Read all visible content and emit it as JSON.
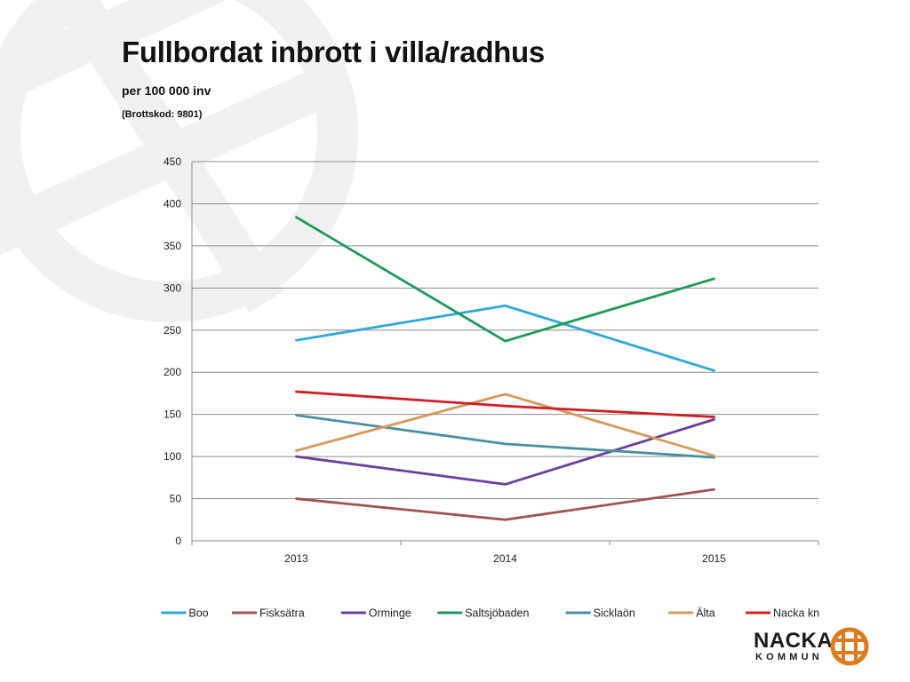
{
  "header": {
    "title": "Fullbordat inbrott i villa/radhus",
    "subtitle": "per 100 000 inv",
    "note": "(Brottskod: 9801)"
  },
  "logo": {
    "word1": "NACKA",
    "word2": "KOMMUN",
    "accent_color": "#e07a1f"
  },
  "chart_data": {
    "type": "line",
    "title": "",
    "xlabel": "",
    "ylabel": "",
    "categories": [
      "2013",
      "2014",
      "2015"
    ],
    "ylim": [
      0,
      450
    ],
    "yticks": [
      0,
      50,
      100,
      150,
      200,
      250,
      300,
      350,
      400,
      450
    ],
    "grid": true,
    "legend_position": "bottom",
    "series": [
      {
        "name": "Boo",
        "color": "#2ea8d8",
        "values": [
          238,
          279,
          202
        ]
      },
      {
        "name": "Fisksätra",
        "color": "#a0524f",
        "values": [
          50,
          25,
          61
        ]
      },
      {
        "name": "Orminge",
        "color": "#6a3da0",
        "values": [
          100,
          67,
          144
        ]
      },
      {
        "name": "Saltsjöbaden",
        "color": "#1f9a5a",
        "values": [
          384,
          237,
          311
        ]
      },
      {
        "name": "Sicklaön",
        "color": "#4a8fa3",
        "values": [
          149,
          115,
          99
        ]
      },
      {
        "name": "Älta",
        "color": "#d69a5a",
        "values": [
          107,
          174,
          101
        ]
      },
      {
        "name": "Nacka kn",
        "color": "#d01f26",
        "values": [
          177,
          160,
          147
        ]
      }
    ]
  }
}
